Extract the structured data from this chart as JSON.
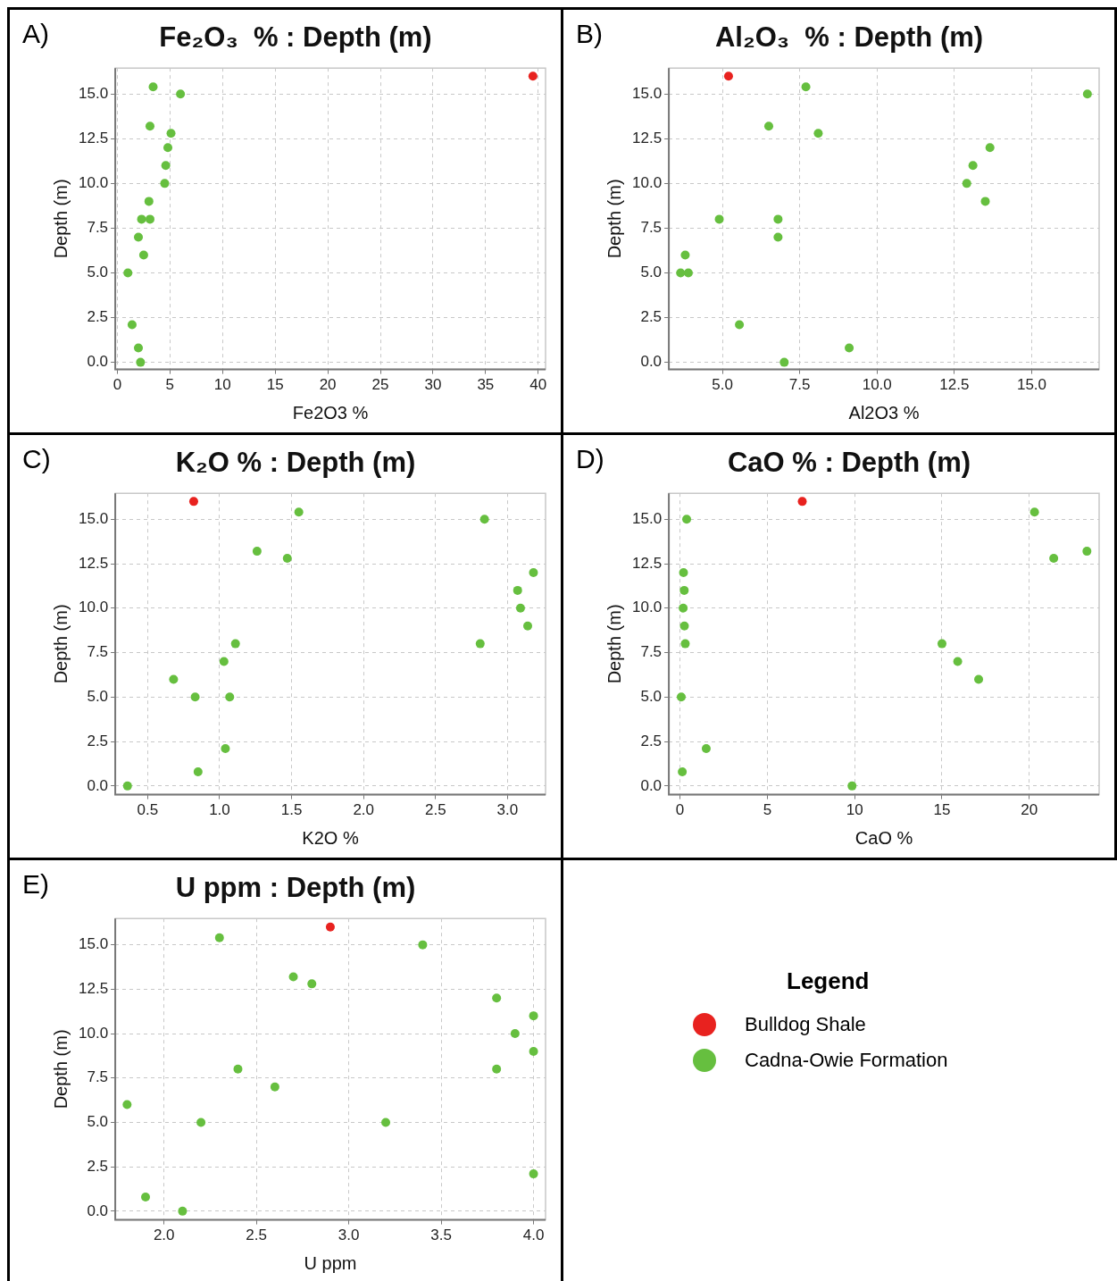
{
  "chart_data": [
    {
      "type": "scatter",
      "title": "Fe₂O₃  % : Depth (m)",
      "xlabel": "Fe2O3 %",
      "ylabel": "Depth (m)",
      "annotations": [
        "A)"
      ],
      "marker": "circle",
      "grid": true,
      "xlim": [
        -0.2,
        40.7
      ],
      "xticks": [
        0,
        5,
        10,
        15,
        20,
        25,
        30,
        35,
        40
      ],
      "ylim": [
        -0.4,
        16.45
      ],
      "yticks": [
        {
          "value": 0,
          "label": "0.0"
        },
        {
          "value": 2.5,
          "label": "2.5"
        },
        {
          "value": 5,
          "label": "5.0"
        },
        {
          "value": 7.5,
          "label": "7.5"
        },
        {
          "value": 10,
          "label": "10.0"
        },
        {
          "value": 12.5,
          "label": "12.5"
        },
        {
          "value": 15,
          "label": "15.0"
        }
      ],
      "series": [
        {
          "color": "#e8221f",
          "x": [
            39.5
          ],
          "values": [
            16
          ]
        },
        {
          "color": "#66bf3f",
          "x": [
            3.4,
            6.0,
            3.1,
            5.1,
            4.8,
            4.6,
            4.5,
            3.0,
            2.3,
            3.1,
            2.0,
            2.5,
            1.0,
            1.4,
            2.0,
            2.2
          ],
          "values": [
            15.4,
            15,
            13.2,
            12.8,
            12,
            11,
            10,
            9,
            8,
            8,
            7,
            6,
            5,
            2.1,
            0.8,
            0
          ]
        }
      ]
    },
    {
      "type": "scatter",
      "title": "Al₂O₃  % : Depth (m)",
      "xlabel": "Al2O3 %",
      "ylabel": "Depth (m)",
      "annotations": [
        "B)"
      ],
      "marker": "circle",
      "grid": true,
      "xlim": [
        3.27,
        17.18
      ],
      "xticks": [
        {
          "value": 5,
          "label": "5.0"
        },
        {
          "value": 7.5,
          "label": "7.5"
        },
        {
          "value": 10,
          "label": "10.0"
        },
        {
          "value": 12.5,
          "label": "12.5"
        },
        {
          "value": 15,
          "label": "15.0"
        }
      ],
      "ylim": [
        -0.4,
        16.45
      ],
      "yticks": [
        {
          "value": 0,
          "label": "0.0"
        },
        {
          "value": 2.5,
          "label": "2.5"
        },
        {
          "value": 5,
          "label": "5.0"
        },
        {
          "value": 7.5,
          "label": "7.5"
        },
        {
          "value": 10,
          "label": "10.0"
        },
        {
          "value": 12.5,
          "label": "12.5"
        },
        {
          "value": 15,
          "label": "15.0"
        }
      ],
      "series": [
        {
          "color": "#e8221f",
          "x": [
            5.2
          ],
          "values": [
            16
          ]
        },
        {
          "color": "#66bf3f",
          "x": [
            7.7,
            16.8,
            6.5,
            8.1,
            13.65,
            13.1,
            12.9,
            13.5,
            4.9,
            6.8,
            6.8,
            3.8,
            3.65,
            3.9,
            5.55,
            9.1,
            7.0
          ],
          "values": [
            15.4,
            15,
            13.2,
            12.8,
            12,
            11,
            10,
            9,
            8,
            8,
            7,
            6,
            5,
            5,
            2.1,
            0.8,
            0
          ]
        }
      ]
    },
    {
      "type": "scatter",
      "title": "K₂O % : Depth (m)",
      "xlabel": "K2O %",
      "ylabel": "Depth (m)",
      "annotations": [
        "C)"
      ],
      "marker": "circle",
      "grid": true,
      "xlim": [
        0.275,
        3.264
      ],
      "xticks": [
        {
          "value": 0.5,
          "label": "0.5"
        },
        {
          "value": 1,
          "label": "1.0"
        },
        {
          "value": 1.5,
          "label": "1.5"
        },
        {
          "value": 2,
          "label": "2.0"
        },
        {
          "value": 2.5,
          "label": "2.5"
        },
        {
          "value": 3,
          "label": "3.0"
        }
      ],
      "ylim": [
        -0.49,
        16.46
      ],
      "yticks": [
        {
          "value": 0,
          "label": "0.0"
        },
        {
          "value": 2.5,
          "label": "2.5"
        },
        {
          "value": 5,
          "label": "5.0"
        },
        {
          "value": 7.5,
          "label": "7.5"
        },
        {
          "value": 10,
          "label": "10.0"
        },
        {
          "value": 12.5,
          "label": "12.5"
        },
        {
          "value": 15,
          "label": "15.0"
        }
      ],
      "series": [
        {
          "color": "#e8221f",
          "x": [
            0.82
          ],
          "values": [
            16
          ]
        },
        {
          "color": "#66bf3f",
          "x": [
            1.55,
            2.84,
            1.26,
            1.47,
            3.18,
            3.07,
            3.09,
            3.14,
            1.11,
            2.81,
            1.03,
            0.68,
            0.83,
            1.07,
            1.04,
            0.85,
            0.36
          ],
          "values": [
            15.4,
            15,
            13.2,
            12.8,
            12,
            11,
            10,
            9,
            8,
            8,
            7,
            6,
            5,
            5,
            2.1,
            0.8,
            0
          ]
        }
      ]
    },
    {
      "type": "scatter",
      "title": "CaO % : Depth (m)",
      "xlabel": "CaO %",
      "ylabel": "Depth (m)",
      "annotations": [
        "D)"
      ],
      "marker": "circle",
      "grid": true,
      "xlim": [
        -0.64,
        24.0
      ],
      "xticks": [
        0,
        5,
        10,
        15,
        20
      ],
      "ylim": [
        -0.49,
        16.46
      ],
      "yticks": [
        {
          "value": 0,
          "label": "0.0"
        },
        {
          "value": 2.5,
          "label": "2.5"
        },
        {
          "value": 5,
          "label": "5.0"
        },
        {
          "value": 7.5,
          "label": "7.5"
        },
        {
          "value": 10,
          "label": "10.0"
        },
        {
          "value": 12.5,
          "label": "12.5"
        },
        {
          "value": 15,
          "label": "15.0"
        }
      ],
      "series": [
        {
          "color": "#e8221f",
          "x": [
            7.0
          ],
          "values": [
            16
          ]
        },
        {
          "color": "#66bf3f",
          "x": [
            20.3,
            0.38,
            23.3,
            21.4,
            0.2,
            0.24,
            0.18,
            0.25,
            0.3,
            15.0,
            15.9,
            17.1,
            0.07,
            1.5,
            0.13,
            9.85
          ],
          "values": [
            15.4,
            15,
            13.2,
            12.8,
            12,
            11,
            10,
            9,
            8,
            8,
            7,
            6,
            5,
            2.1,
            0.8,
            0
          ]
        }
      ]
    },
    {
      "type": "scatter",
      "title": "U ppm : Depth (m)",
      "xlabel": "U ppm",
      "ylabel": "Depth (m)",
      "annotations": [
        "E)"
      ],
      "marker": "circle",
      "grid": true,
      "legend": "right",
      "legend_title": "Legend",
      "xlim": [
        1.736,
        4.065
      ],
      "xticks": [
        {
          "value": 2,
          "label": "2.0"
        },
        {
          "value": 2.5,
          "label": "2.5"
        },
        {
          "value": 3,
          "label": "3.0"
        },
        {
          "value": 3.5,
          "label": "3.5"
        },
        {
          "value": 4,
          "label": "4.0"
        }
      ],
      "ylim": [
        -0.49,
        16.48
      ],
      "yticks": [
        {
          "value": 0,
          "label": "0.0"
        },
        {
          "value": 2.5,
          "label": "2.5"
        },
        {
          "value": 5,
          "label": "5.0"
        },
        {
          "value": 7.5,
          "label": "7.5"
        },
        {
          "value": 10,
          "label": "10.0"
        },
        {
          "value": 12.5,
          "label": "12.5"
        },
        {
          "value": 15,
          "label": "15.0"
        }
      ],
      "series": [
        {
          "name": "Bulldog Shale",
          "color": "#e8221f",
          "x": [
            2.9
          ],
          "values": [
            16
          ]
        },
        {
          "name": "Cadna-Owie Formation",
          "color": "#66bf3f",
          "x": [
            2.3,
            3.4,
            2.7,
            2.8,
            3.8,
            4.0,
            3.9,
            4.0,
            2.4,
            3.8,
            2.6,
            1.8,
            2.2,
            3.2,
            4.0,
            1.9,
            2.1
          ],
          "values": [
            15.4,
            15,
            13.2,
            12.8,
            12,
            11,
            10,
            9,
            8,
            8,
            7,
            6,
            5,
            5,
            2.1,
            0.8,
            0
          ]
        }
      ]
    }
  ]
}
